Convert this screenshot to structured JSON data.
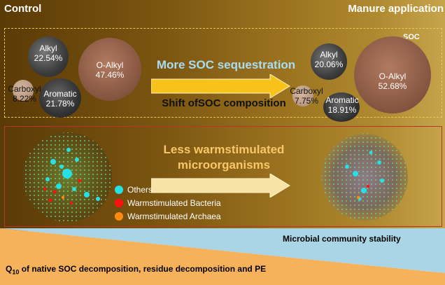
{
  "header": {
    "left": "Control",
    "right": "Manure application"
  },
  "soc_badge": "SOC",
  "control_composition": [
    {
      "name": "Alkyl",
      "value": "22.54%"
    },
    {
      "name": "O-Alkyl",
      "value": "47.46%"
    },
    {
      "name": "Carboxyl",
      "value": "8.22%"
    },
    {
      "name": "Aromatic",
      "value": "21.78%"
    }
  ],
  "manure_composition": [
    {
      "name": "Alkyl",
      "value": "20.06%"
    },
    {
      "name": "O-Alkyl",
      "value": "52.68%"
    },
    {
      "name": "Carboxyl",
      "value": "7.75%"
    },
    {
      "name": "Aromatic",
      "value": "18.91%"
    }
  ],
  "arrow1": {
    "label": "More SOC sequestration"
  },
  "shift_label": "Shift ofSOC composition",
  "arrow2": {
    "label_line1": "Less warmstimulated",
    "label_line2": "microorganisms"
  },
  "legend": [
    {
      "label": "Others",
      "color": "#27e0e6"
    },
    {
      "label": "Warmstimulated Bacteria",
      "color": "#ff1010"
    },
    {
      "label": "Warmstimulated Archaea",
      "color": "#ff8a10"
    }
  ],
  "stability_label": "Microbial community stability",
  "q10_label": {
    "q": "Q",
    "sub": "10",
    "rest": " of native SOC decomposition, residue decomposition and PE"
  },
  "colors": {
    "arrow": "#f7c21a",
    "arrow_text_top": "#a9ddf2",
    "arrow_text_mid": "#f7c76a",
    "stability_fill": "#a9d5e6",
    "q10_fill": "#f6b25a",
    "node_green": "#7fe07a"
  }
}
